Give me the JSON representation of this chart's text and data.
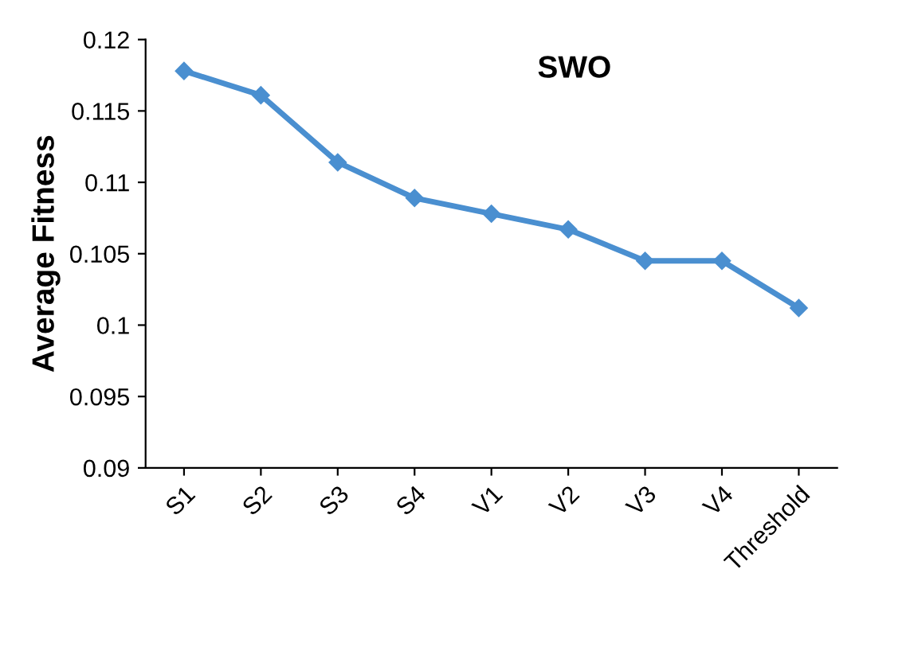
{
  "chart_data": {
    "type": "line",
    "title": "SWO",
    "ylabel": "Average Fitness",
    "categories": [
      "S1",
      "S2",
      "S3",
      "S4",
      "V1",
      "V2",
      "V3",
      "V4",
      "Threshold"
    ],
    "series": [
      {
        "color": "#4a8fd0",
        "values": [
          0.1178,
          0.1161,
          0.1114,
          0.1089,
          0.1078,
          0.1067,
          0.1045,
          0.1045,
          0.1012
        ]
      }
    ],
    "ylim": [
      0.09,
      0.12
    ],
    "yticks": [
      0.09,
      0.095,
      0.1,
      0.105,
      0.11,
      0.115,
      0.12
    ],
    "marker": "diamond",
    "line_style": "solid",
    "grid": false,
    "legend": false
  }
}
